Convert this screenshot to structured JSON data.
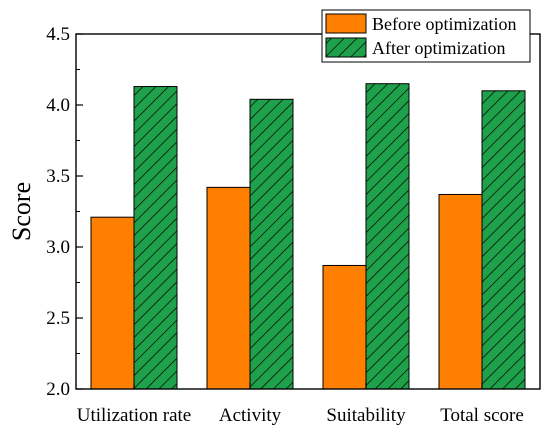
{
  "chart_data": {
    "type": "bar",
    "categories": [
      "Utilization rate",
      "Activity",
      "Suitability",
      "Total score"
    ],
    "series": [
      {
        "name": "Before optimization",
        "values": [
          3.21,
          3.42,
          2.87,
          3.37
        ],
        "color": "#FF8000",
        "pattern": "solid"
      },
      {
        "name": "After optimization",
        "values": [
          4.13,
          4.04,
          4.15,
          4.1
        ],
        "color": "#1FA04A",
        "pattern": "diagonal-hatch"
      }
    ],
    "xlabel": "",
    "ylabel": "Score",
    "ylim": [
      2.0,
      4.5
    ],
    "yticks": [
      "2.0",
      "2.5",
      "3.0",
      "3.5",
      "4.0",
      "4.5"
    ],
    "grid": false,
    "legend_position": "top-right",
    "frame": "full-box"
  }
}
